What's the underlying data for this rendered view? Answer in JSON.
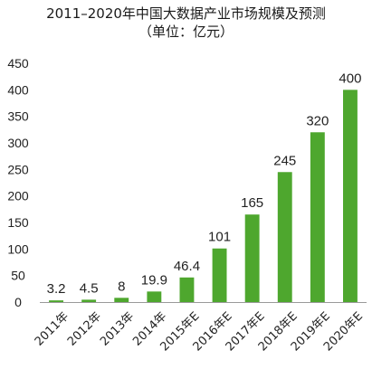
{
  "chart_data": {
    "type": "bar",
    "title": "2011–2020年中国大数据产业市场规模及预测",
    "subtitle": "（单位：亿元）",
    "categories": [
      "2011年",
      "2012年",
      "2013年",
      "2014年",
      "2015年E",
      "2016年E",
      "2017年E",
      "2018年E",
      "2019年E",
      "2020年E"
    ],
    "values": [
      3.2,
      4.5,
      8,
      19.9,
      46.4,
      101,
      165,
      245,
      320,
      400
    ],
    "data_labels": [
      "3.2",
      "4.5",
      "8",
      "19.9",
      "46.4",
      "101",
      "165",
      "245",
      "320",
      "400"
    ],
    "ylim": [
      0,
      450
    ],
    "yticks": [
      0,
      50,
      100,
      150,
      200,
      250,
      300,
      350,
      400,
      450
    ],
    "ytick_labels": [
      "0",
      "50",
      "100",
      "150",
      "200",
      "250",
      "300",
      "350",
      "400",
      "450"
    ],
    "xlabel": "",
    "ylabel": "",
    "bar_color": "#4ea72e",
    "grid": false
  }
}
